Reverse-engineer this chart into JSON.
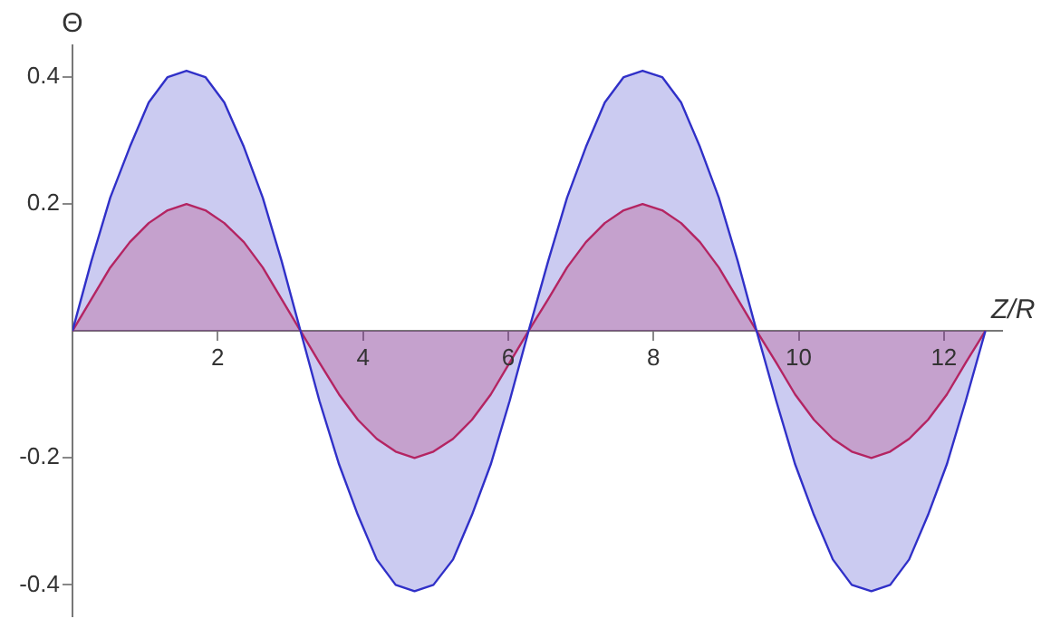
{
  "chart_data": {
    "type": "area",
    "xlabel": "Z/R",
    "ylabel": "Θ",
    "x": [
      0,
      0.26,
      0.52,
      0.79,
      1.05,
      1.31,
      1.57,
      1.83,
      2.09,
      2.36,
      2.62,
      2.88,
      3.14,
      3.4,
      3.67,
      3.93,
      4.19,
      4.45,
      4.71,
      4.97,
      5.24,
      5.5,
      5.76,
      6.02,
      6.28,
      6.55,
      6.81,
      7.07,
      7.33,
      7.59,
      7.85,
      8.12,
      8.38,
      8.64,
      8.9,
      9.16,
      9.42,
      9.69,
      9.95,
      10.21,
      10.47,
      10.73,
      11,
      11.26,
      11.52,
      11.78,
      12.04,
      12.3,
      12.57
    ],
    "series": [
      {
        "color": "#3030c8",
        "values": [
          0,
          0.11,
          0.21,
          0.29,
          0.36,
          0.4,
          0.41,
          0.4,
          0.36,
          0.29,
          0.21,
          0.11,
          0,
          -0.11,
          -0.21,
          -0.29,
          -0.36,
          -0.4,
          -0.41,
          -0.4,
          -0.36,
          -0.29,
          -0.21,
          -0.11,
          0,
          0.11,
          0.21,
          0.29,
          0.36,
          0.4,
          0.41,
          0.4,
          0.36,
          0.29,
          0.21,
          0.11,
          0,
          -0.11,
          -0.21,
          -0.29,
          -0.36,
          -0.4,
          -0.41,
          -0.4,
          -0.36,
          -0.29,
          -0.21,
          -0.11,
          0
        ]
      },
      {
        "color": "#e02040",
        "values": [
          0,
          0.05,
          0.1,
          0.14,
          0.17,
          0.19,
          0.2,
          0.19,
          0.17,
          0.14,
          0.1,
          0.05,
          0,
          -0.05,
          -0.1,
          -0.14,
          -0.17,
          -0.19,
          -0.2,
          -0.19,
          -0.17,
          -0.14,
          -0.1,
          -0.05,
          0,
          0.05,
          0.1,
          0.14,
          0.17,
          0.19,
          0.2,
          0.19,
          0.17,
          0.14,
          0.1,
          0.05,
          0,
          -0.05,
          -0.1,
          -0.14,
          -0.17,
          -0.19,
          -0.2,
          -0.19,
          -0.17,
          -0.14,
          -0.1,
          -0.05,
          0
        ]
      }
    ],
    "xlim": [
      0,
      12.8
    ],
    "ylim": [
      -0.45,
      0.45
    ],
    "xticks": [
      2,
      4,
      6,
      8,
      10,
      12
    ],
    "yticks": [
      -0.4,
      -0.2,
      0.2,
      0.4
    ],
    "grid": false,
    "legend": false,
    "marker": "none",
    "line_style": "solid"
  }
}
